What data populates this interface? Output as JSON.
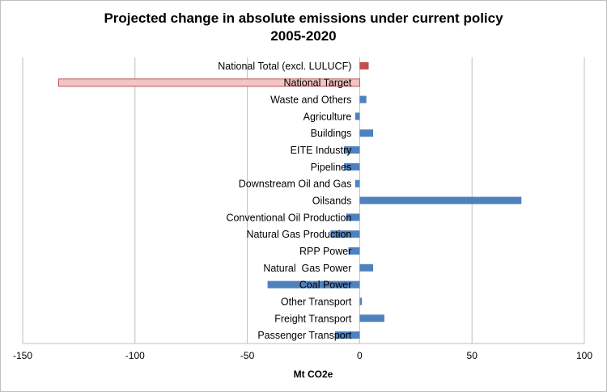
{
  "chart_data": {
    "type": "bar",
    "orientation": "horizontal",
    "title": "Projected change in absolute emissions under current policy",
    "subtitle": "2005-2020",
    "xlabel": "Mt CO2e",
    "ylabel": "",
    "xlim": [
      -150,
      100
    ],
    "xticks": [
      -150,
      -100,
      -50,
      0,
      50,
      100
    ],
    "grid": "vertical",
    "legend": "none",
    "colors": {
      "default": "#4f81bd",
      "total": "#c0504d",
      "target_fill": "#f2c4c4",
      "target_stroke": "#c0504d",
      "grid": "#bfbfbf"
    },
    "categories": [
      "National Total (excl. LULUCF)",
      "National Target",
      "Waste and Others",
      "Agriculture",
      "Buildings",
      "EITE Industry",
      "Pipelines",
      "Downstream Oil and Gas",
      "Oilsands",
      "Conventional Oil Production",
      "Natural Gas Production",
      "RPP Power",
      "Natural  Gas Power",
      "Coal Power",
      "Other Transport",
      "Freight Transport",
      "Passenger Transport"
    ],
    "values": [
      4,
      -134,
      3,
      -2,
      6,
      -7,
      -7,
      -2,
      72,
      -6,
      -13,
      -5,
      6,
      -41,
      1,
      11,
      -11
    ],
    "styles": [
      "total",
      "target",
      "default",
      "default",
      "default",
      "default",
      "default",
      "default",
      "default",
      "default",
      "default",
      "default",
      "default",
      "default",
      "default",
      "default",
      "default"
    ]
  }
}
